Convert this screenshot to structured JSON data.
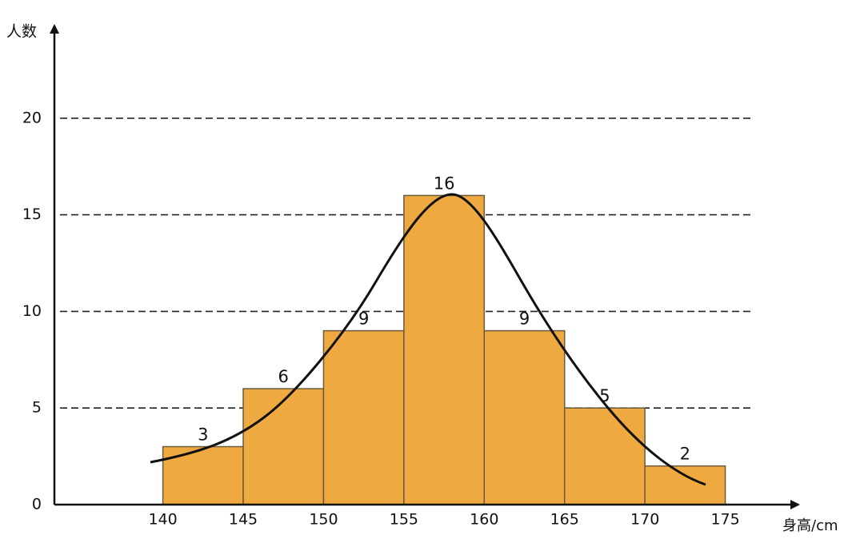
{
  "chart_data": {
    "type": "histogram",
    "y_label": "人数",
    "x_label": "身高/cm",
    "bins": [
      140,
      145,
      150,
      155,
      160,
      165,
      170,
      175
    ],
    "values": [
      3,
      6,
      9,
      16,
      9,
      5,
      2
    ],
    "color": "#eeaa40",
    "xlim": [
      133,
      180
    ],
    "ylim": [
      0,
      25
    ],
    "yticks": [
      0,
      5,
      10,
      15,
      20
    ],
    "grid": true
  }
}
